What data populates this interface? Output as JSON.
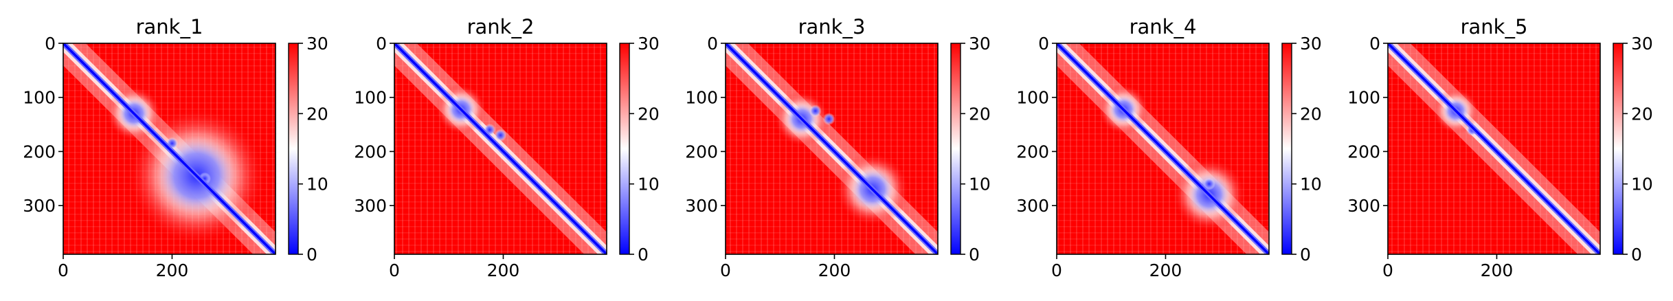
{
  "figure": {
    "background": "#ffffff",
    "colormap": "bwr"
  },
  "chart_data": [
    {
      "type": "heatmap",
      "title": "rank_1",
      "matrix_size": 390,
      "x_ticks": [
        0,
        200
      ],
      "y_ticks": [
        0,
        100,
        200,
        300
      ],
      "xlim": [
        0,
        390
      ],
      "ylim": [
        390,
        0
      ],
      "colorbar": {
        "range": [
          0,
          30
        ],
        "ticks": [
          0,
          10,
          20,
          30
        ],
        "colors": [
          "#0000ff",
          "#ffffff",
          "#ff0000"
        ]
      },
      "domain_blocks": [
        [
          100,
          160
        ],
        [
          170,
          320
        ]
      ],
      "blue_spots": [
        [
          200,
          185
        ],
        [
          260,
          250
        ]
      ]
    },
    {
      "type": "heatmap",
      "title": "rank_2",
      "matrix_size": 390,
      "x_ticks": [
        0,
        200
      ],
      "y_ticks": [
        0,
        100,
        200,
        300
      ],
      "xlim": [
        0,
        390
      ],
      "ylim": [
        390,
        0
      ],
      "colorbar": {
        "range": [
          0,
          30
        ],
        "ticks": [
          0,
          10,
          20,
          30
        ],
        "colors": [
          "#0000ff",
          "#ffffff",
          "#ff0000"
        ]
      },
      "domain_blocks": [
        [
          95,
          150
        ]
      ],
      "blue_spots": [
        [
          195,
          170
        ],
        [
          175,
          160
        ]
      ]
    },
    {
      "type": "heatmap",
      "title": "rank_3",
      "matrix_size": 390,
      "x_ticks": [
        0,
        200
      ],
      "y_ticks": [
        0,
        100,
        200,
        300
      ],
      "xlim": [
        0,
        390
      ],
      "ylim": [
        390,
        0
      ],
      "colorbar": {
        "range": [
          0,
          30
        ],
        "ticks": [
          0,
          10,
          20,
          30
        ],
        "colors": [
          "#0000ff",
          "#ffffff",
          "#ff0000"
        ]
      },
      "domain_blocks": [
        [
          110,
          170
        ],
        [
          230,
          310
        ]
      ],
      "blue_spots": [
        [
          190,
          140
        ],
        [
          165,
          125
        ]
      ]
    },
    {
      "type": "heatmap",
      "title": "rank_4",
      "matrix_size": 390,
      "x_ticks": [
        0,
        200
      ],
      "y_ticks": [
        0,
        100,
        200,
        300
      ],
      "xlim": [
        0,
        390
      ],
      "ylim": [
        390,
        0
      ],
      "colorbar": {
        "range": [
          0,
          30
        ],
        "ticks": [
          0,
          10,
          20,
          30
        ],
        "colors": [
          "#0000ff",
          "#ffffff",
          "#ff0000"
        ]
      },
      "domain_blocks": [
        [
          95,
          150
        ],
        [
          240,
          320
        ]
      ],
      "blue_spots": [
        [
          280,
          260
        ]
      ]
    },
    {
      "type": "heatmap",
      "title": "rank_5",
      "matrix_size": 390,
      "x_ticks": [
        0,
        200
      ],
      "y_ticks": [
        0,
        100,
        200,
        300
      ],
      "xlim": [
        0,
        390
      ],
      "ylim": [
        390,
        0
      ],
      "colorbar": {
        "range": [
          0,
          30
        ],
        "ticks": [
          0,
          10,
          20,
          30
        ],
        "colors": [
          "#0000ff",
          "#ffffff",
          "#ff0000"
        ]
      },
      "domain_blocks": [
        [
          100,
          150
        ]
      ],
      "blue_spots": [
        [
          155,
          160
        ]
      ]
    }
  ]
}
